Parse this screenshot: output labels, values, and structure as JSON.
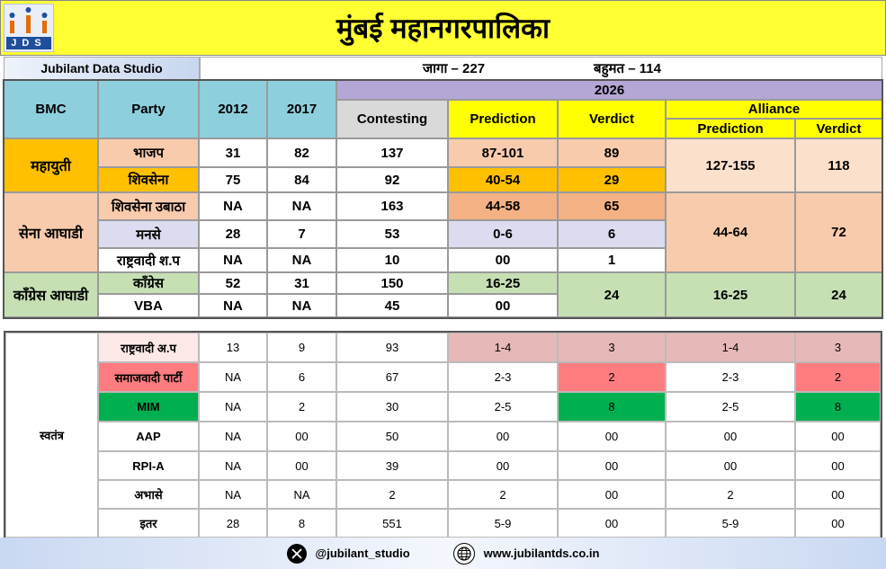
{
  "header": {
    "title": "मुंबई महानगरपालिका",
    "logo_text": "JDS",
    "brand": "Jubilant Data Studio",
    "seats": "जागा  – 227",
    "majority": "बहुमत  – 114"
  },
  "columns": {
    "bmc": "BMC",
    "party": "Party",
    "y2012": "2012",
    "y2017": "2017",
    "y2026": "2026",
    "contesting": "Contesting",
    "prediction": "Prediction",
    "verdict": "Verdict",
    "alliance": "Alliance",
    "alliance_prediction": "Prediction",
    "alliance_verdict": "Verdict"
  },
  "colors": {
    "title_bg": "#ffff33",
    "header_teal": "#8ecfdd",
    "header_grey": "#d9d9d9",
    "header_purple": "#b4a7d6",
    "header_yellow": "#ffff00",
    "mahayuti_bg": "#ffc000",
    "sena_aghadi_bg": "#f8cbad",
    "congress_aghadi_bg": "#c6e0b4",
    "samajwadi_bg": "#ff7c80",
    "mim_bg": "#00b050",
    "ncp_ap_bg": "#e6b8b7"
  },
  "chart_data": {
    "type": "table",
    "title": "मुंबई महानगरपालिका",
    "alliances": [
      {
        "name": "महायुती",
        "alliance_prediction": "127-155",
        "alliance_verdict": "118",
        "parties": [
          {
            "party": "भाजप",
            "y2012": "31",
            "y2017": "82",
            "contesting": "137",
            "prediction": "87-101",
            "verdict": "89"
          },
          {
            "party": "शिवसेना",
            "y2012": "75",
            "y2017": "84",
            "contesting": "92",
            "prediction": "40-54",
            "verdict": "29"
          }
        ]
      },
      {
        "name": "सेना आघाडी",
        "alliance_prediction": "44-64",
        "alliance_verdict": "72",
        "parties": [
          {
            "party": "शिवसेना उबाठा",
            "y2012": "NA",
            "y2017": "NA",
            "contesting": "163",
            "prediction": "44-58",
            "verdict": "65"
          },
          {
            "party": "मनसे",
            "y2012": "28",
            "y2017": "7",
            "contesting": "53",
            "prediction": "0-6",
            "verdict": "6"
          },
          {
            "party": "राष्ट्रवादी श.प",
            "y2012": "NA",
            "y2017": "NA",
            "contesting": "10",
            "prediction": "00",
            "verdict": "1"
          }
        ]
      },
      {
        "name": "काँग्रेस आघाडी",
        "alliance_prediction": "16-25",
        "alliance_verdict": "24",
        "combined_prediction": "16-25",
        "combined_verdict": "24",
        "parties": [
          {
            "party": "काँग्रेस",
            "y2012": "52",
            "y2017": "31",
            "contesting": "150",
            "prediction": "16-25",
            "verdict": ""
          },
          {
            "party": "VBA",
            "y2012": "NA",
            "y2017": "NA",
            "contesting": "45",
            "prediction": "00",
            "verdict": ""
          }
        ]
      }
    ],
    "independents": {
      "name": "स्वतंत्र",
      "parties": [
        {
          "party": "राष्ट्रवादी अ.प",
          "y2012": "13",
          "y2017": "9",
          "contesting": "93",
          "prediction": "1-4",
          "verdict": "3",
          "alliance_prediction": "1-4",
          "alliance_verdict": "3"
        },
        {
          "party": "समाजवादी पार्टी",
          "y2012": "NA",
          "y2017": "6",
          "contesting": "67",
          "prediction": "2-3",
          "verdict": "2",
          "alliance_prediction": "2-3",
          "alliance_verdict": "2"
        },
        {
          "party": "MIM",
          "y2012": "NA",
          "y2017": "2",
          "contesting": "30",
          "prediction": "2-5",
          "verdict": "8",
          "alliance_prediction": "2-5",
          "alliance_verdict": "8"
        },
        {
          "party": "AAP",
          "y2012": "NA",
          "y2017": "00",
          "contesting": "50",
          "prediction": "00",
          "verdict": "00",
          "alliance_prediction": "00",
          "alliance_verdict": "00"
        },
        {
          "party": "RPI-A",
          "y2012": "NA",
          "y2017": "00",
          "contesting": "39",
          "prediction": "00",
          "verdict": "00",
          "alliance_prediction": "00",
          "alliance_verdict": "00"
        },
        {
          "party": "अभासे",
          "y2012": "NA",
          "y2017": "NA",
          "contesting": "2",
          "prediction": "2",
          "verdict": "00",
          "alliance_prediction": "2",
          "alliance_verdict": "00"
        },
        {
          "party": "इतर",
          "y2012": "28",
          "y2017": "8",
          "contesting": "551",
          "prediction": "5-9",
          "verdict": "00",
          "alliance_prediction": "5-9",
          "alliance_verdict": "00"
        }
      ]
    }
  },
  "footer": {
    "x_icon": "x-icon",
    "handle": "@jubilant_studio",
    "globe_icon": "globe-icon",
    "website": "www.jubilantds.co.in"
  }
}
